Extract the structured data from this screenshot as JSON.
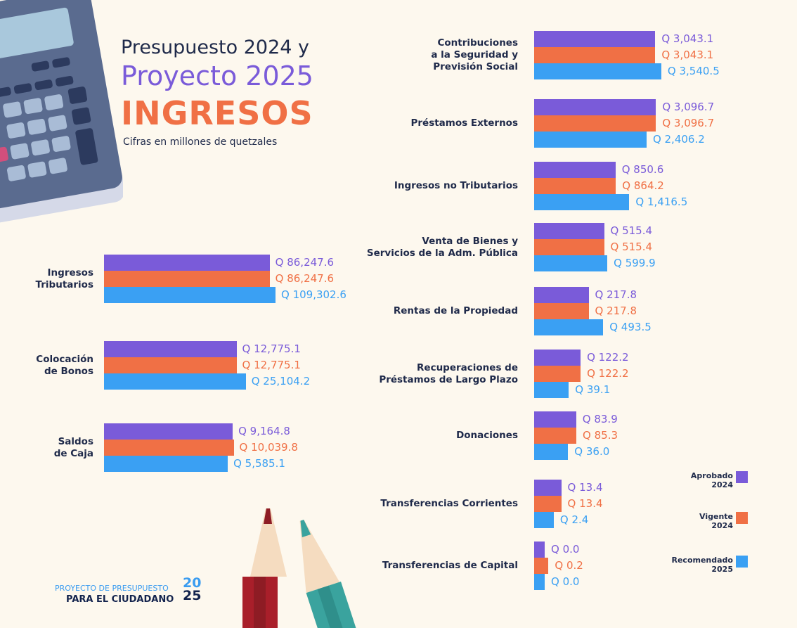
{
  "header": {
    "line1": "Presupuesto 2024 y",
    "line2": "Proyecto 2025",
    "line3": "INGRESOS",
    "subtitle": "Cifras en millones de quetzales"
  },
  "logo": {
    "line1": "PROYECTO DE PRESUPUESTO",
    "line2": "PARA EL CIUDADANO",
    "year": "2025"
  },
  "colors": {
    "aprobado_2024": "#7a5bd9",
    "vigente_2024": "#f07045",
    "recomendado_2025": "#3aa0f3"
  },
  "chart_data": [
    {
      "type": "bar",
      "orientation": "horizontal",
      "legend": [
        "Aprobado 2024",
        "Vigente 2024",
        "Recomendado 2025"
      ],
      "categories": [
        "Ingresos\nTributarios",
        "Colocación\nde Bonos",
        "Saldos\nde Caja"
      ],
      "series": [
        {
          "name": "Aprobado 2024",
          "values": [
            86247.6,
            12775.1,
            9164.8
          ],
          "labels": [
            "Q 86,247.6",
            "Q 12,775.1",
            "Q 9,164.8"
          ]
        },
        {
          "name": "Vigente 2024",
          "values": [
            86247.6,
            12775.1,
            10039.8
          ],
          "labels": [
            "Q 86,247.6",
            "Q 12,775.1",
            "Q 10,039.8"
          ]
        },
        {
          "name": "Recomendado 2025",
          "values": [
            109302.6,
            25104.2,
            5585.1
          ],
          "labels": [
            "Q 109,302.6",
            "Q 25,104.2",
            "Q 5,585.1"
          ]
        }
      ]
    },
    {
      "type": "bar",
      "orientation": "horizontal",
      "legend_placement": "right",
      "legend": [
        "Aprobado\n2024",
        "Vigente\n2024",
        "Recomendado\n2025"
      ],
      "categories": [
        "Contribuciones\na la Seguridad y\nPrevisión Social",
        "Préstamos Externos",
        "Ingresos no Tributarios",
        "Venta de Bienes y\nServicios de la Adm. Pública",
        "Rentas de la Propiedad",
        "Recuperaciones de\nPréstamos de Largo Plazo",
        "Donaciones",
        "Transferencias Corrientes",
        "Transferencias de Capital"
      ],
      "series": [
        {
          "name": "Aprobado 2024",
          "values": [
            3043.1,
            3096.7,
            850.6,
            515.4,
            217.8,
            122.2,
            83.9,
            13.4,
            0.0
          ],
          "labels": [
            "Q 3,043.1",
            "Q 3,096.7",
            "Q 850.6",
            "Q 515.4",
            "Q 217.8",
            "Q 122.2",
            "Q 83.9",
            "Q 13.4",
            "Q 0.0"
          ]
        },
        {
          "name": "Vigente 2024",
          "values": [
            3043.1,
            3096.7,
            864.2,
            515.4,
            217.8,
            122.2,
            85.3,
            13.4,
            0.2
          ],
          "labels": [
            "Q 3,043.1",
            "Q 3,096.7",
            "Q 864.2",
            "Q 515.4",
            "Q 217.8",
            "Q 122.2",
            "Q 85.3",
            "Q 13.4",
            "Q 0.2"
          ]
        },
        {
          "name": "Recomendado 2025",
          "values": [
            3540.5,
            2406.2,
            1416.5,
            599.9,
            493.5,
            39.1,
            36.0,
            2.4,
            0.0
          ],
          "labels": [
            "Q 3,540.5",
            "Q 2,406.2",
            "Q 1,416.5",
            "Q 599.9",
            "Q 493.5",
            "Q 39.1",
            "Q 36.0",
            "Q 2.4",
            "Q 0.0"
          ]
        }
      ]
    }
  ]
}
